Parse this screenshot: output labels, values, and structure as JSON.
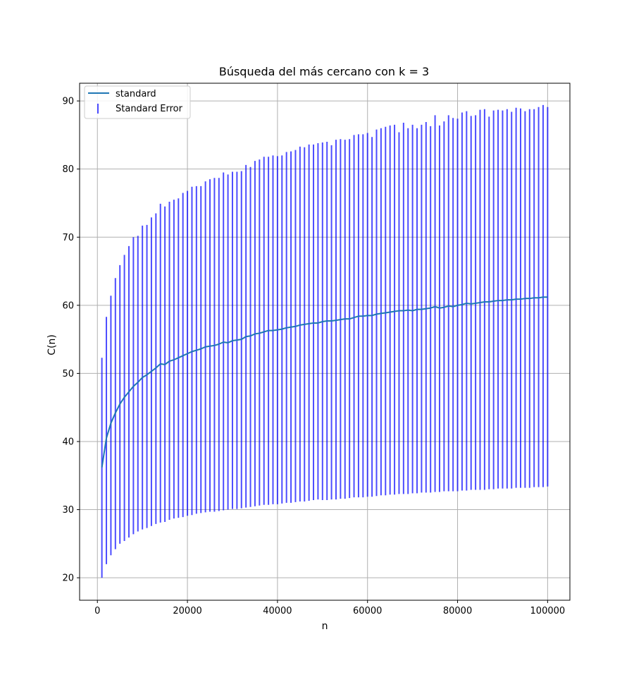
{
  "chart_data": {
    "type": "line",
    "title": "Búsqueda del más cercano con k = 3",
    "xlabel": "n",
    "ylabel": "C(n)",
    "xlim": [
      -3950,
      104950
    ],
    "ylim": [
      16.7,
      92.6
    ],
    "xticks": [
      0,
      20000,
      40000,
      60000,
      80000,
      100000
    ],
    "yticks": [
      20,
      30,
      40,
      50,
      60,
      70,
      80,
      90
    ],
    "grid": true,
    "legend_position": "upper-left",
    "colors": {
      "line": "#1f77b4",
      "errorbar": "#0000ff"
    },
    "series": [
      {
        "name": "standard",
        "kind": "line",
        "x": [
          1000,
          2000,
          3000,
          4000,
          5000,
          6000,
          7000,
          8000,
          9000,
          10000,
          11000,
          12000,
          13000,
          14000,
          15000,
          16000,
          17000,
          18000,
          19000,
          20000,
          21000,
          22000,
          23000,
          24000,
          25000,
          26000,
          27000,
          28000,
          29000,
          30000,
          31000,
          32000,
          33000,
          34000,
          35000,
          36000,
          37000,
          38000,
          39000,
          40000,
          41000,
          42000,
          43000,
          44000,
          45000,
          46000,
          47000,
          48000,
          49000,
          50000,
          51000,
          52000,
          53000,
          54000,
          55000,
          56000,
          57000,
          58000,
          59000,
          60000,
          61000,
          62000,
          63000,
          64000,
          65000,
          66000,
          67000,
          68000,
          69000,
          70000,
          71000,
          72000,
          73000,
          74000,
          75000,
          76000,
          77000,
          78000,
          79000,
          80000,
          81000,
          82000,
          83000,
          84000,
          85000,
          86000,
          87000,
          88000,
          89000,
          90000,
          91000,
          92000,
          93000,
          94000,
          95000,
          96000,
          97000,
          98000,
          99000,
          100000
        ],
        "y": [
          36.2,
          40.5,
          42.7,
          44.2,
          45.5,
          46.5,
          47.3,
          48.1,
          48.7,
          49.4,
          49.8,
          50.3,
          50.8,
          51.4,
          51.3,
          51.8,
          52.0,
          52.3,
          52.6,
          52.9,
          53.2,
          53.4,
          53.6,
          53.9,
          54.0,
          54.1,
          54.3,
          54.6,
          54.5,
          54.8,
          54.9,
          55.0,
          55.4,
          55.5,
          55.8,
          55.9,
          56.1,
          56.3,
          56.3,
          56.4,
          56.5,
          56.7,
          56.8,
          56.9,
          57.1,
          57.2,
          57.3,
          57.4,
          57.4,
          57.6,
          57.7,
          57.7,
          57.8,
          57.9,
          58.0,
          58.0,
          58.2,
          58.4,
          58.4,
          58.5,
          58.5,
          58.7,
          58.8,
          58.9,
          59.0,
          59.1,
          59.2,
          59.2,
          59.3,
          59.2,
          59.4,
          59.4,
          59.5,
          59.6,
          59.8,
          59.6,
          59.7,
          59.9,
          59.8,
          60.0,
          60.1,
          60.3,
          60.2,
          60.3,
          60.4,
          60.5,
          60.5,
          60.6,
          60.7,
          60.7,
          60.8,
          60.8,
          60.9,
          60.9,
          61.0,
          61.0,
          61.1,
          61.1,
          61.2,
          61.2
        ]
      },
      {
        "name": "Standard Error",
        "kind": "errorbar",
        "x_ref": "series.0.x",
        "lower": [
          20.0,
          22.0,
          23.3,
          24.2,
          25.0,
          25.4,
          25.9,
          26.4,
          26.8,
          27.1,
          27.3,
          27.6,
          27.9,
          28.1,
          28.2,
          28.5,
          28.7,
          28.8,
          28.9,
          29.1,
          29.2,
          29.4,
          29.5,
          29.6,
          29.7,
          29.7,
          29.8,
          29.9,
          30.0,
          30.1,
          30.1,
          30.2,
          30.3,
          30.4,
          30.5,
          30.6,
          30.7,
          30.7,
          30.8,
          30.8,
          30.9,
          31.0,
          31.0,
          31.1,
          31.2,
          31.2,
          31.3,
          31.4,
          31.5,
          31.4,
          31.4,
          31.5,
          31.5,
          31.6,
          31.6,
          31.7,
          31.8,
          31.8,
          31.8,
          31.9,
          31.9,
          32.0,
          32.1,
          32.1,
          32.2,
          32.2,
          32.3,
          32.3,
          32.3,
          32.4,
          32.4,
          32.5,
          32.5,
          32.5,
          32.6,
          32.6,
          32.7,
          32.7,
          32.7,
          32.7,
          32.8,
          32.8,
          32.9,
          32.9,
          32.9,
          32.9,
          33.0,
          33.0,
          33.1,
          33.1,
          33.1,
          33.1,
          33.2,
          33.2,
          33.2,
          33.2,
          33.3,
          33.3,
          33.3,
          33.4
        ],
        "upper": [
          52.3,
          58.3,
          61.4,
          64.0,
          65.9,
          67.4,
          68.7,
          70.0,
          70.2,
          71.7,
          71.8,
          72.9,
          73.5,
          74.9,
          74.5,
          75.2,
          75.5,
          75.7,
          76.5,
          76.8,
          77.4,
          77.5,
          77.5,
          78.2,
          78.5,
          78.7,
          78.7,
          79.5,
          79.2,
          79.6,
          79.6,
          79.7,
          80.6,
          80.3,
          81.2,
          81.4,
          81.8,
          81.8,
          82.0,
          81.9,
          82.0,
          82.5,
          82.6,
          82.8,
          83.3,
          83.2,
          83.6,
          83.6,
          83.8,
          83.9,
          84.0,
          83.5,
          84.3,
          84.4,
          84.3,
          84.4,
          85.0,
          85.1,
          85.1,
          85.3,
          84.7,
          85.8,
          86.0,
          86.2,
          86.4,
          86.5,
          85.4,
          86.8,
          86.0,
          86.5,
          86.0,
          86.5,
          86.9,
          86.3,
          87.9,
          86.4,
          87.0,
          87.9,
          87.5,
          87.4,
          88.3,
          88.5,
          87.8,
          87.9,
          88.7,
          88.8,
          87.7,
          88.6,
          88.7,
          88.6,
          88.8,
          88.4,
          89.0,
          88.9,
          88.5,
          88.8,
          88.8,
          89.1,
          89.4,
          89.1
        ]
      }
    ]
  }
}
